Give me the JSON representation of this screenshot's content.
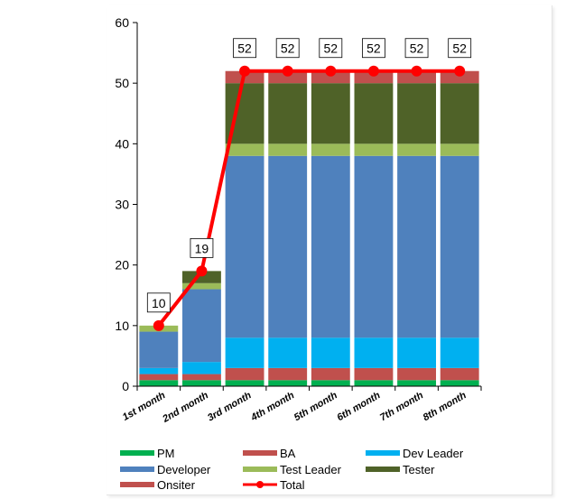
{
  "chart_data": {
    "type": "bar",
    "stacked": true,
    "categories": [
      "1st month",
      "2nd month",
      "3rd month",
      "4th month",
      "5th month",
      "6th month",
      "7th month",
      "8th month"
    ],
    "ylim": [
      0,
      60
    ],
    "yticks": [
      0,
      10,
      20,
      30,
      40,
      50,
      60
    ],
    "grid": false,
    "legend_position": "bottom",
    "series": [
      {
        "name": "PM",
        "color": "#00B050",
        "values": [
          1,
          1,
          1,
          1,
          1,
          1,
          1,
          1
        ]
      },
      {
        "name": "BA",
        "color": "#C0504D",
        "values": [
          1,
          1,
          2,
          2,
          2,
          2,
          2,
          2
        ]
      },
      {
        "name": "Dev Leader",
        "color": "#00B0F0",
        "values": [
          1,
          2,
          5,
          5,
          5,
          5,
          5,
          5
        ]
      },
      {
        "name": "Developer",
        "color": "#4F81BD",
        "values": [
          6,
          12,
          30,
          30,
          30,
          30,
          30,
          30
        ]
      },
      {
        "name": "Test Leader",
        "color": "#9BBB59",
        "values": [
          1,
          1,
          2,
          2,
          2,
          2,
          2,
          2
        ]
      },
      {
        "name": "Tester",
        "color": "#4F6228",
        "values": [
          0,
          2,
          10,
          10,
          10,
          10,
          10,
          10
        ]
      },
      {
        "name": "Onsiter",
        "color": "#C0504D",
        "values": [
          0,
          0,
          2,
          2,
          2,
          2,
          2,
          2
        ]
      }
    ],
    "total": {
      "name": "Total",
      "type": "line",
      "color": "#FF0000",
      "values": [
        10,
        19,
        52,
        52,
        52,
        52,
        52,
        52
      ]
    }
  }
}
